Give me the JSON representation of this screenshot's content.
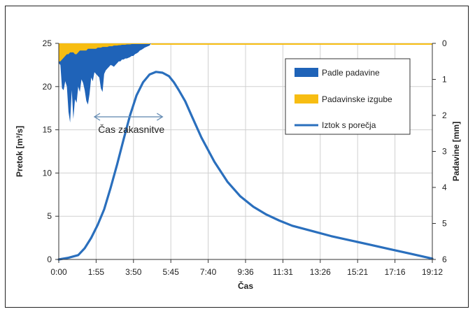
{
  "chart_data": {
    "type": "line",
    "xlabel": "Čas",
    "ylabel_left": "Pretok [m³/s]",
    "ylabel_right": "Padavine [mm]",
    "x_ticks": [
      "0:00",
      "1:55",
      "3:50",
      "5:45",
      "7:40",
      "9:36",
      "11:31",
      "13:26",
      "15:21",
      "17:16",
      "19:12"
    ],
    "y_left_ticks": [
      0,
      5,
      10,
      15,
      20,
      25
    ],
    "y_right_ticks": [
      0,
      1,
      2,
      3,
      4,
      5,
      6
    ],
    "y_left_lim": [
      0,
      25
    ],
    "y_right_lim": [
      6,
      0
    ],
    "x_range_minutes": [
      0,
      1152
    ],
    "grid": true,
    "legend_position": "right",
    "colors": {
      "padle": "#1f63b8",
      "izgube": "#f7bd12",
      "iztok": "#2a6fbd"
    },
    "series": [
      {
        "name": "Padle padavine",
        "type": "area",
        "axis": "right",
        "x_minutes": [
          0,
          5,
          10,
          15,
          20,
          25,
          30,
          35,
          40,
          45,
          50,
          55,
          60,
          65,
          70,
          75,
          80,
          85,
          90,
          95,
          100,
          105,
          110,
          115,
          120,
          125,
          130,
          135,
          140,
          145,
          150,
          155,
          160,
          165,
          170,
          175,
          180,
          185,
          190,
          195,
          200,
          205,
          210,
          215,
          220,
          225,
          230,
          235,
          240,
          245,
          250,
          255,
          260,
          265,
          270,
          275,
          280,
          285
        ],
        "values": [
          0.55,
          0.6,
          1.25,
          1.3,
          1.05,
          1.2,
          1.9,
          2.2,
          1.3,
          2.1,
          1.55,
          1.65,
          1.2,
          1.35,
          1.0,
          1.1,
          1.3,
          1.6,
          1.7,
          1.4,
          0.95,
          1.05,
          0.8,
          0.85,
          0.9,
          0.95,
          1.25,
          1.35,
          0.85,
          0.75,
          0.7,
          0.65,
          0.6,
          0.62,
          0.65,
          0.6,
          0.55,
          0.5,
          0.5,
          0.45,
          0.45,
          0.42,
          0.42,
          0.4,
          0.38,
          0.35,
          0.35,
          0.3,
          0.28,
          0.25,
          0.2,
          0.18,
          0.15,
          0.12,
          0.1,
          0.08,
          0.06,
          0.0
        ]
      },
      {
        "name": "Padavinske izgube",
        "type": "area",
        "axis": "right",
        "x_minutes": [
          0,
          5,
          10,
          15,
          20,
          25,
          30,
          35,
          40,
          45,
          50,
          55,
          60,
          65,
          70,
          75,
          80,
          85,
          90,
          95,
          100,
          105,
          110,
          115,
          120,
          125,
          130,
          135,
          140,
          145,
          150,
          155,
          160,
          165,
          170,
          175,
          180,
          185,
          190,
          195,
          200,
          205,
          210,
          215,
          220,
          225,
          230,
          235,
          240,
          245,
          250,
          255,
          260,
          265,
          270,
          275,
          280,
          285
        ],
        "values": [
          0.5,
          0.5,
          0.45,
          0.4,
          0.35,
          0.3,
          0.3,
          0.25,
          0.25,
          0.25,
          0.3,
          0.3,
          0.25,
          0.2,
          0.2,
          0.2,
          0.2,
          0.2,
          0.15,
          0.15,
          0.15,
          0.15,
          0.15,
          0.15,
          0.12,
          0.12,
          0.12,
          0.1,
          0.1,
          0.1,
          0.1,
          0.08,
          0.08,
          0.08,
          0.06,
          0.06,
          0.06,
          0.05,
          0.05,
          0.04,
          0.04,
          0.04,
          0.03,
          0.03,
          0.03,
          0.02,
          0.02,
          0.02,
          0.02,
          0.02,
          0.02,
          0.02,
          0.02,
          0.02,
          0.02,
          0.02,
          0.02,
          0.0
        ]
      },
      {
        "name": "Iztok s porečja",
        "type": "line",
        "axis": "left",
        "x_minutes": [
          0,
          30,
          60,
          80,
          100,
          120,
          140,
          160,
          180,
          200,
          220,
          240,
          260,
          280,
          300,
          320,
          340,
          355,
          370,
          390,
          410,
          440,
          480,
          520,
          560,
          600,
          640,
          680,
          720,
          780,
          840,
          900,
          960,
          1020,
          1080,
          1152
        ],
        "values": [
          0,
          0.2,
          0.5,
          1.3,
          2.5,
          4.0,
          5.8,
          8.3,
          11.0,
          13.9,
          16.7,
          19.0,
          20.5,
          21.4,
          21.7,
          21.6,
          21.2,
          20.5,
          19.6,
          18.3,
          16.6,
          14.1,
          11.3,
          9.0,
          7.3,
          6.1,
          5.2,
          4.5,
          3.9,
          3.3,
          2.7,
          2.2,
          1.7,
          1.2,
          0.7,
          0.1
        ]
      }
    ],
    "legend": [
      "Padle padavine",
      "Padavinske izgube",
      "Iztok s porečja"
    ],
    "annotation": {
      "text": "Čas zakasnitve",
      "x_start_minutes": 110,
      "x_end_minutes": 320,
      "y": 16.5
    }
  }
}
